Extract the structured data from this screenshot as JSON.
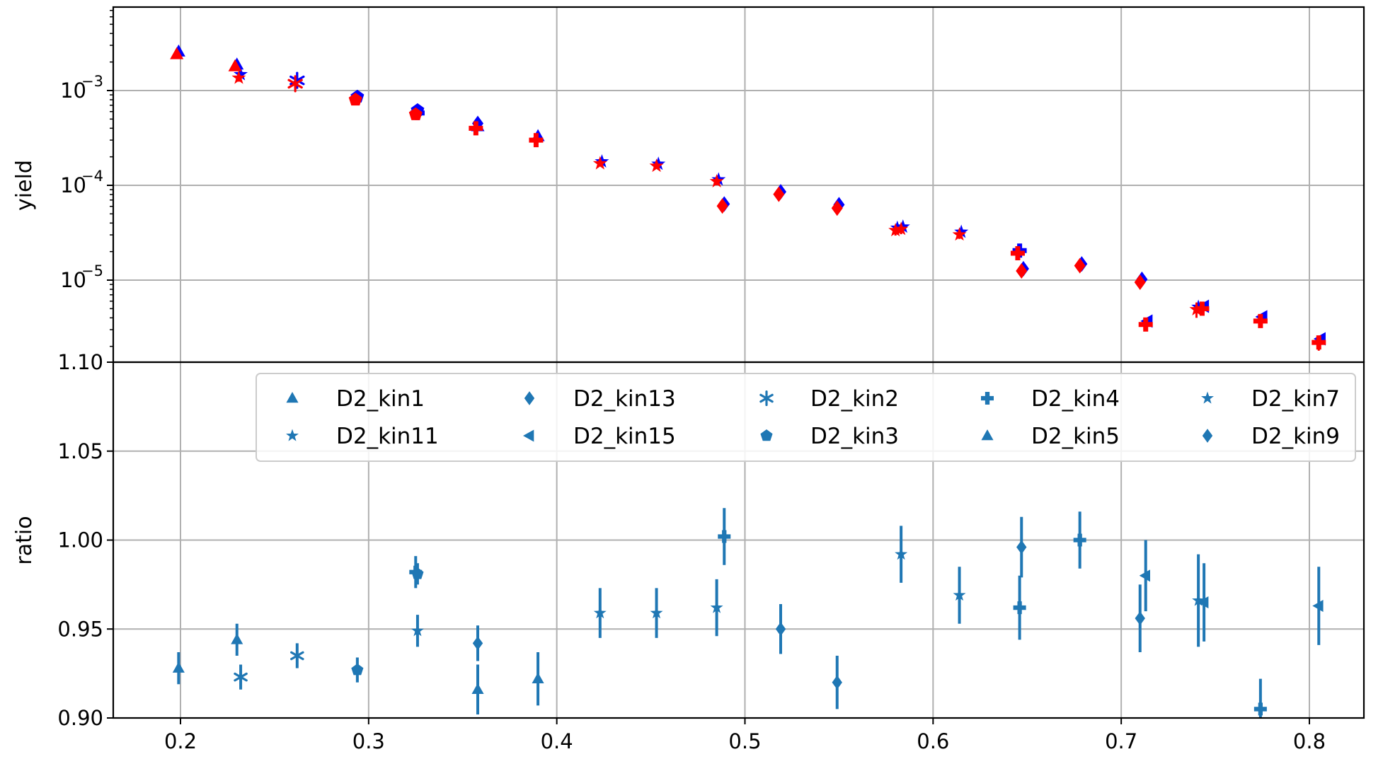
{
  "chart_data": [
    {
      "type": "scatter",
      "panel": "top",
      "title": "",
      "xlabel": "",
      "ylabel": "yield",
      "yscale": "log",
      "xlim": [
        0.17,
        0.835
      ],
      "ylim": [
        1.1e-06,
        0.0095
      ],
      "grid": true,
      "ytick_labels": [
        {
          "value": 0.001,
          "base": "10",
          "exp": "−3"
        },
        {
          "value": 0.0001,
          "base": "10",
          "exp": "−4"
        },
        {
          "value": 1e-05,
          "base": "10",
          "exp": "−5"
        }
      ],
      "series": [
        {
          "marker_color": "#0000ff",
          "points": [
            {
              "x": 0.199,
              "y": 0.00258,
              "m": "triangle"
            },
            {
              "x": 0.23,
              "y": 0.00188,
              "m": "triangle"
            },
            {
              "x": 0.232,
              "y": 0.00148,
              "m": "star"
            },
            {
              "x": 0.262,
              "y": 0.00128,
              "m": "asterisk"
            },
            {
              "x": 0.294,
              "y": 0.00086,
              "m": "pentagon"
            },
            {
              "x": 0.326,
              "y": 0.00062,
              "m": "pentagon"
            },
            {
              "x": 0.326,
              "y": 0.00058,
              "m": "plus"
            },
            {
              "x": 0.358,
              "y": 0.00045,
              "m": "diamond"
            },
            {
              "x": 0.358,
              "y": 0.00042,
              "m": "triangle"
            },
            {
              "x": 0.39,
              "y": 0.00033,
              "m": "triangle"
            },
            {
              "x": 0.424,
              "y": 0.000178,
              "m": "star"
            },
            {
              "x": 0.454,
              "y": 0.000168,
              "m": "star"
            },
            {
              "x": 0.486,
              "y": 0.000115,
              "m": "star"
            },
            {
              "x": 0.489,
              "y": 6.35e-05,
              "m": "diamond"
            },
            {
              "x": 0.519,
              "y": 8.55e-05,
              "m": "diamond"
            },
            {
              "x": 0.55,
              "y": 6.25e-05,
              "m": "diamond"
            },
            {
              "x": 0.581,
              "y": 3.55e-05,
              "m": "star"
            },
            {
              "x": 0.584,
              "y": 3.65e-05,
              "m": "star"
            },
            {
              "x": 0.615,
              "y": 3.22e-05,
              "m": "star"
            },
            {
              "x": 0.646,
              "y": 2.05e-05,
              "m": "plus"
            },
            {
              "x": 0.648,
              "y": 1.32e-05,
              "m": "diamond"
            },
            {
              "x": 0.679,
              "y": 1.48e-05,
              "m": "diamond"
            },
            {
              "x": 0.711,
              "y": 1.02e-05,
              "m": "diamond"
            },
            {
              "x": 0.714,
              "y": 3.7e-06,
              "m": "tri_left"
            },
            {
              "x": 0.741,
              "y": 5.2e-06,
              "m": "star"
            },
            {
              "x": 0.744,
              "y": 5.3e-06,
              "m": "tri_left"
            },
            {
              "x": 0.775,
              "y": 4.1e-06,
              "m": "tri_left"
            },
            {
              "x": 0.806,
              "y": 2.4e-06,
              "m": "tri_left"
            }
          ]
        },
        {
          "marker_color": "#ff0000",
          "points": [
            {
              "x": 0.198,
              "y": 0.00242,
              "m": "triangle",
              "err": 0.00012
            },
            {
              "x": 0.229,
              "y": 0.0018,
              "m": "triangle",
              "err": 0.0001
            },
            {
              "x": 0.231,
              "y": 0.00136,
              "m": "star",
              "err": 0.00012
            },
            {
              "x": 0.261,
              "y": 0.00118,
              "m": "asterisk",
              "err": 0.00012
            },
            {
              "x": 0.293,
              "y": 0.0008,
              "m": "pentagon",
              "err": 4e-05
            },
            {
              "x": 0.325,
              "y": 0.00056,
              "m": "pentagon",
              "err": 3e-05
            },
            {
              "x": 0.357,
              "y": 0.0004,
              "m": "plus",
              "err": 4e-05
            },
            {
              "x": 0.389,
              "y": 0.0003,
              "m": "plus",
              "err": 3e-05
            },
            {
              "x": 0.423,
              "y": 0.00017,
              "m": "star",
              "err": 1e-05
            },
            {
              "x": 0.453,
              "y": 0.00016,
              "m": "star",
              "err": 1e-05
            },
            {
              "x": 0.485,
              "y": 0.00011,
              "m": "star",
              "err": 1e-05
            },
            {
              "x": 0.488,
              "y": 6.05e-05,
              "m": "diamond",
              "err": 4e-06
            },
            {
              "x": 0.518,
              "y": 8.05e-05,
              "m": "diamond",
              "err": 5e-06
            },
            {
              "x": 0.549,
              "y": 5.75e-05,
              "m": "diamond",
              "err": 4e-06
            },
            {
              "x": 0.58,
              "y": 3.35e-05,
              "m": "star",
              "err": 4e-06
            },
            {
              "x": 0.583,
              "y": 3.45e-05,
              "m": "star",
              "err": 4e-06
            },
            {
              "x": 0.614,
              "y": 3.02e-05,
              "m": "star",
              "err": 3e-06
            },
            {
              "x": 0.645,
              "y": 1.92e-05,
              "m": "plus",
              "err": 3e-06
            },
            {
              "x": 0.647,
              "y": 1.25e-05,
              "m": "diamond",
              "err": 1e-06
            },
            {
              "x": 0.678,
              "y": 1.42e-05,
              "m": "diamond",
              "err": 1e-06
            },
            {
              "x": 0.71,
              "y": 9.5e-06,
              "m": "diamond",
              "err": 1.2e-06
            },
            {
              "x": 0.713,
              "y": 3.4e-06,
              "m": "plus",
              "err": 5e-07
            },
            {
              "x": 0.74,
              "y": 4.9e-06,
              "m": "star",
              "err": 9e-07
            },
            {
              "x": 0.743,
              "y": 5e-06,
              "m": "plus",
              "err": 7e-07
            },
            {
              "x": 0.774,
              "y": 3.7e-06,
              "m": "plus",
              "err": 5e-07
            },
            {
              "x": 0.805,
              "y": 2.2e-06,
              "m": "plus",
              "err": 4e-07
            }
          ]
        }
      ]
    },
    {
      "type": "scatter",
      "panel": "bottom",
      "title": "",
      "xlabel": "",
      "ylabel": "ratio",
      "xlim": [
        0.17,
        0.835
      ],
      "ylim": [
        0.9,
        1.1
      ],
      "grid": true,
      "legend_position": "upper-right",
      "legend_columns": 5,
      "xticks": [
        0.2,
        0.3,
        0.4,
        0.5,
        0.6,
        0.7,
        0.8
      ],
      "xtick_labels": [
        "0.2",
        "0.3",
        "0.4",
        "0.5",
        "0.6",
        "0.7",
        "0.8"
      ],
      "yticks": [
        0.9,
        0.95,
        1.0,
        1.05,
        1.1
      ],
      "ytick_labels": [
        "0.90",
        "0.95",
        "1.00",
        "1.05",
        "1.10"
      ],
      "color": "#1f77b4",
      "series": [
        {
          "name": "D2_kin1",
          "marker": "triangle",
          "points": [
            {
              "x": 0.199,
              "y": 0.928,
              "err": 0.009
            },
            {
              "x": 0.23,
              "y": 0.944,
              "err": 0.009
            }
          ]
        },
        {
          "name": "D2_kin13",
          "marker": "diamond",
          "points": [
            {
              "x": 0.549,
              "y": 0.92,
              "err": 0.015
            },
            {
              "x": 0.647,
              "y": 0.996,
              "err": 0.017
            }
          ]
        },
        {
          "name": "D2_kin2",
          "marker": "asterisk",
          "points": [
            {
              "x": 0.232,
              "y": 0.923,
              "err": 0.007
            },
            {
              "x": 0.262,
              "y": 0.935,
              "err": 0.007
            }
          ]
        },
        {
          "name": "D2_kin4",
          "marker": "plus",
          "points": [
            {
              "x": 0.325,
              "y": 0.982,
              "err": 0.009
            },
            {
              "x": 0.489,
              "y": 1.002,
              "err": 0.016
            },
            {
              "x": 0.646,
              "y": 0.962,
              "err": 0.018
            },
            {
              "x": 0.678,
              "y": 1.0,
              "err": 0.016
            },
            {
              "x": 0.774,
              "y": 0.905,
              "err": 0.017
            }
          ]
        },
        {
          "name": "D2_kin7",
          "marker": "star",
          "points": [
            {
              "x": 0.326,
              "y": 0.949,
              "err": 0.009
            },
            {
              "x": 0.423,
              "y": 0.959,
              "err": 0.014
            },
            {
              "x": 0.453,
              "y": 0.959,
              "err": 0.014
            },
            {
              "x": 0.485,
              "y": 0.962,
              "err": 0.016
            },
            {
              "x": 0.583,
              "y": 0.992,
              "err": 0.016
            },
            {
              "x": 0.614,
              "y": 0.969,
              "err": 0.016
            }
          ]
        },
        {
          "name": "D2_kin11",
          "marker": "star",
          "points": [
            {
              "x": 0.741,
              "y": 0.966,
              "err": 0.026
            }
          ]
        },
        {
          "name": "D2_kin15",
          "marker": "tri_left",
          "points": [
            {
              "x": 0.713,
              "y": 0.98,
              "err": 0.02
            },
            {
              "x": 0.744,
              "y": 0.965,
              "err": 0.022
            },
            {
              "x": 0.805,
              "y": 0.963,
              "err": 0.022
            }
          ]
        },
        {
          "name": "D2_kin3",
          "marker": "pentagon",
          "points": [
            {
              "x": 0.294,
              "y": 0.927,
              "err": 0.007
            },
            {
              "x": 0.326,
              "y": 0.981,
              "err": 0.006
            }
          ]
        },
        {
          "name": "D2_kin5",
          "marker": "triangle",
          "points": [
            {
              "x": 0.358,
              "y": 0.916,
              "err": 0.014
            },
            {
              "x": 0.39,
              "y": 0.922,
              "err": 0.015
            }
          ]
        },
        {
          "name": "D2_kin9",
          "marker": "diamond",
          "points": [
            {
              "x": 0.358,
              "y": 0.942,
              "err": 0.01
            },
            {
              "x": 0.519,
              "y": 0.95,
              "err": 0.014
            },
            {
              "x": 0.71,
              "y": 0.956,
              "err": 0.019
            }
          ]
        }
      ],
      "legend": [
        {
          "label": "D2_kin1",
          "marker": "triangle"
        },
        {
          "label": "D2_kin13",
          "marker": "diamond"
        },
        {
          "label": "D2_kin2",
          "marker": "asterisk"
        },
        {
          "label": "D2_kin4",
          "marker": "plus"
        },
        {
          "label": "D2_kin7",
          "marker": "star"
        },
        {
          "label": "D2_kin11",
          "marker": "star"
        },
        {
          "label": "D2_kin15",
          "marker": "tri_left"
        },
        {
          "label": "D2_kin3",
          "marker": "pentagon"
        },
        {
          "label": "D2_kin5",
          "marker": "triangle"
        },
        {
          "label": "D2_kin9",
          "marker": "diamond"
        }
      ]
    }
  ]
}
